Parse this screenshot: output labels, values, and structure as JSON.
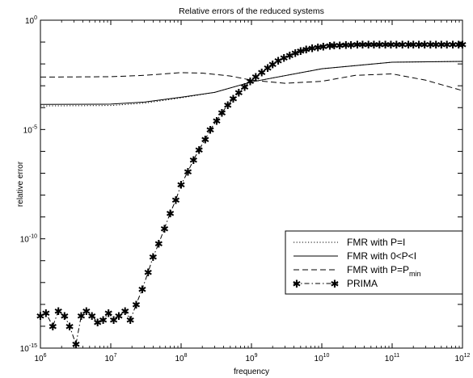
{
  "chart_data": {
    "type": "line",
    "title": "Relative errors of the reduced systems",
    "xlabel": "frequency",
    "ylabel": "relative error",
    "x_scale": "log",
    "y_scale": "log",
    "xlim": [
      1000000.0,
      1000000000000.0
    ],
    "ylim": [
      1e-15,
      1
    ],
    "x_ticks": [
      {
        "base": "10",
        "exp": "6"
      },
      {
        "base": "10",
        "exp": "7"
      },
      {
        "base": "10",
        "exp": "8"
      },
      {
        "base": "10",
        "exp": "9"
      },
      {
        "base": "10",
        "exp": "10"
      },
      {
        "base": "10",
        "exp": "11"
      },
      {
        "base": "10",
        "exp": "12"
      }
    ],
    "y_ticks": [
      {
        "base": "10",
        "exp": "-15"
      },
      {
        "base": "10",
        "exp": "-10"
      },
      {
        "base": "10",
        "exp": "-5"
      },
      {
        "base": "10",
        "exp": "0"
      }
    ],
    "grid": false,
    "legend_position": "lower-right",
    "series": [
      {
        "name": "FMR with P=I",
        "style": "dotted",
        "x": [
          1000000.0,
          10000000.0,
          30000000.0,
          100000000.0,
          300000000.0,
          1000000000.0,
          10000000000.0,
          100000000000.0,
          1000000000000.0
        ],
        "y": [
          0.00012,
          0.000125,
          0.00016,
          0.00028,
          0.0005,
          0.0015,
          0.006,
          0.012,
          0.013
        ]
      },
      {
        "name": "FMR with 0<P<I",
        "style": "solid",
        "x": [
          1000000.0,
          10000000.0,
          30000000.0,
          100000000.0,
          300000000.0,
          1000000000.0,
          10000000000.0,
          100000000000.0,
          1000000000000.0
        ],
        "y": [
          0.00014,
          0.000145,
          0.00018,
          0.0003,
          0.0005,
          0.0015,
          0.006,
          0.012,
          0.013
        ]
      },
      {
        "name": "FMR with P=P",
        "name_sub": "min",
        "style": "dashed",
        "x": [
          1000000.0,
          10000000.0,
          30000000.0,
          100000000.0,
          200000000.0,
          500000000.0,
          1000000000.0,
          3000000000.0,
          10000000000.0,
          30000000000.0,
          100000000000.0,
          300000000000.0,
          1000000000000.0
        ],
        "y": [
          0.0025,
          0.0026,
          0.003,
          0.004,
          0.0038,
          0.0028,
          0.0018,
          0.0013,
          0.0016,
          0.003,
          0.0035,
          0.0018,
          0.0006
        ]
      },
      {
        "name": "PRIMA",
        "style": "dashdot-star",
        "x": [
          1000000.0,
          1200000.0,
          1500000.0,
          1800000.0,
          2200000.0,
          2600000.0,
          3200000.0,
          3800000.0,
          4500000.0,
          5400000.0,
          6500000.0,
          7800000.0,
          9300000.0,
          11000000.0,
          13000000.0,
          16000000.0,
          19000000.0,
          23000000.0,
          28000000.0,
          34000000.0,
          40000000.0,
          48000000.0,
          58000000.0,
          70000000.0,
          84000000.0,
          100000000.0,
          125000000.0,
          150000000.0,
          180000000.0,
          220000000.0,
          260000000.0,
          320000000.0,
          380000000.0,
          460000000.0,
          550000000.0,
          660000000.0,
          800000000.0,
          960000000.0,
          1150000000.0,
          1400000000.0,
          1700000000.0,
          2000000000.0,
          2400000000.0,
          2900000000.0,
          3500000000.0,
          4200000000.0,
          5000000000.0,
          6000000000.0,
          7300000000.0,
          8800000000.0,
          10500000000.0,
          13000000000.0,
          15000000000.0,
          18000000000.0,
          22000000000.0,
          26000000000.0,
          32000000000.0,
          38000000000.0,
          46000000000.0,
          55000000000.0,
          66000000000.0,
          80000000000.0,
          96000000000.0,
          115000000000.0,
          140000000000.0,
          170000000000.0,
          200000000000.0,
          240000000000.0,
          290000000000.0,
          350000000000.0,
          420000000000.0,
          500000000000.0,
          600000000000.0,
          730000000000.0,
          880000000000.0,
          1000000000000.0
        ],
        "y": [
          3e-14,
          4e-14,
          1e-14,
          5e-14,
          3e-14,
          1e-14,
          1.5e-15,
          3e-14,
          5e-14,
          3e-14,
          1.5e-14,
          2e-14,
          4e-14,
          2e-14,
          3e-14,
          5e-14,
          2e-14,
          1e-13,
          5e-13,
          3e-12,
          1.5e-11,
          6e-11,
          3e-10,
          1.5e-09,
          6e-09,
          3e-08,
          1.2e-07,
          4e-07,
          1.2e-06,
          3.5e-06,
          1e-05,
          2.5e-05,
          6e-05,
          0.00013,
          0.00026,
          0.0005,
          0.0009,
          0.0016,
          0.0026,
          0.0042,
          0.0065,
          0.0095,
          0.014,
          0.019,
          0.025,
          0.032,
          0.039,
          0.046,
          0.053,
          0.059,
          0.064,
          0.068,
          0.071,
          0.073,
          0.075,
          0.076,
          0.077,
          0.0775,
          0.078,
          0.078,
          0.078,
          0.078,
          0.078,
          0.078,
          0.078,
          0.078,
          0.078,
          0.078,
          0.078,
          0.078,
          0.078,
          0.078,
          0.078,
          0.078,
          0.078,
          0.078
        ]
      }
    ]
  }
}
